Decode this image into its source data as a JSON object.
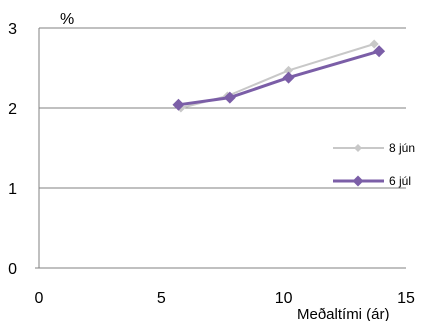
{
  "chart_data": {
    "type": "line",
    "ylabel": "%",
    "xlabel": "Meðaltími (ár)",
    "xlim": [
      0,
      15
    ],
    "ylim": [
      0,
      3
    ],
    "xticks": [
      "0",
      "5",
      "10",
      "15"
    ],
    "yticks": [
      "0",
      "1",
      "2",
      "3"
    ],
    "grid": "horizontal",
    "legend_position": "right",
    "series": [
      {
        "name": "8 jún",
        "color": "#c8c8c8",
        "marker": "diamond",
        "points": [
          [
            5.8,
            2.0
          ],
          [
            7.7,
            2.15
          ],
          [
            10.2,
            2.47
          ],
          [
            13.7,
            2.8
          ]
        ]
      },
      {
        "name": "6 júl",
        "color": "#7b5ea7",
        "marker": "diamond",
        "points": [
          [
            5.7,
            2.04
          ],
          [
            7.8,
            2.13
          ],
          [
            10.2,
            2.38
          ],
          [
            13.9,
            2.71
          ]
        ]
      }
    ]
  }
}
